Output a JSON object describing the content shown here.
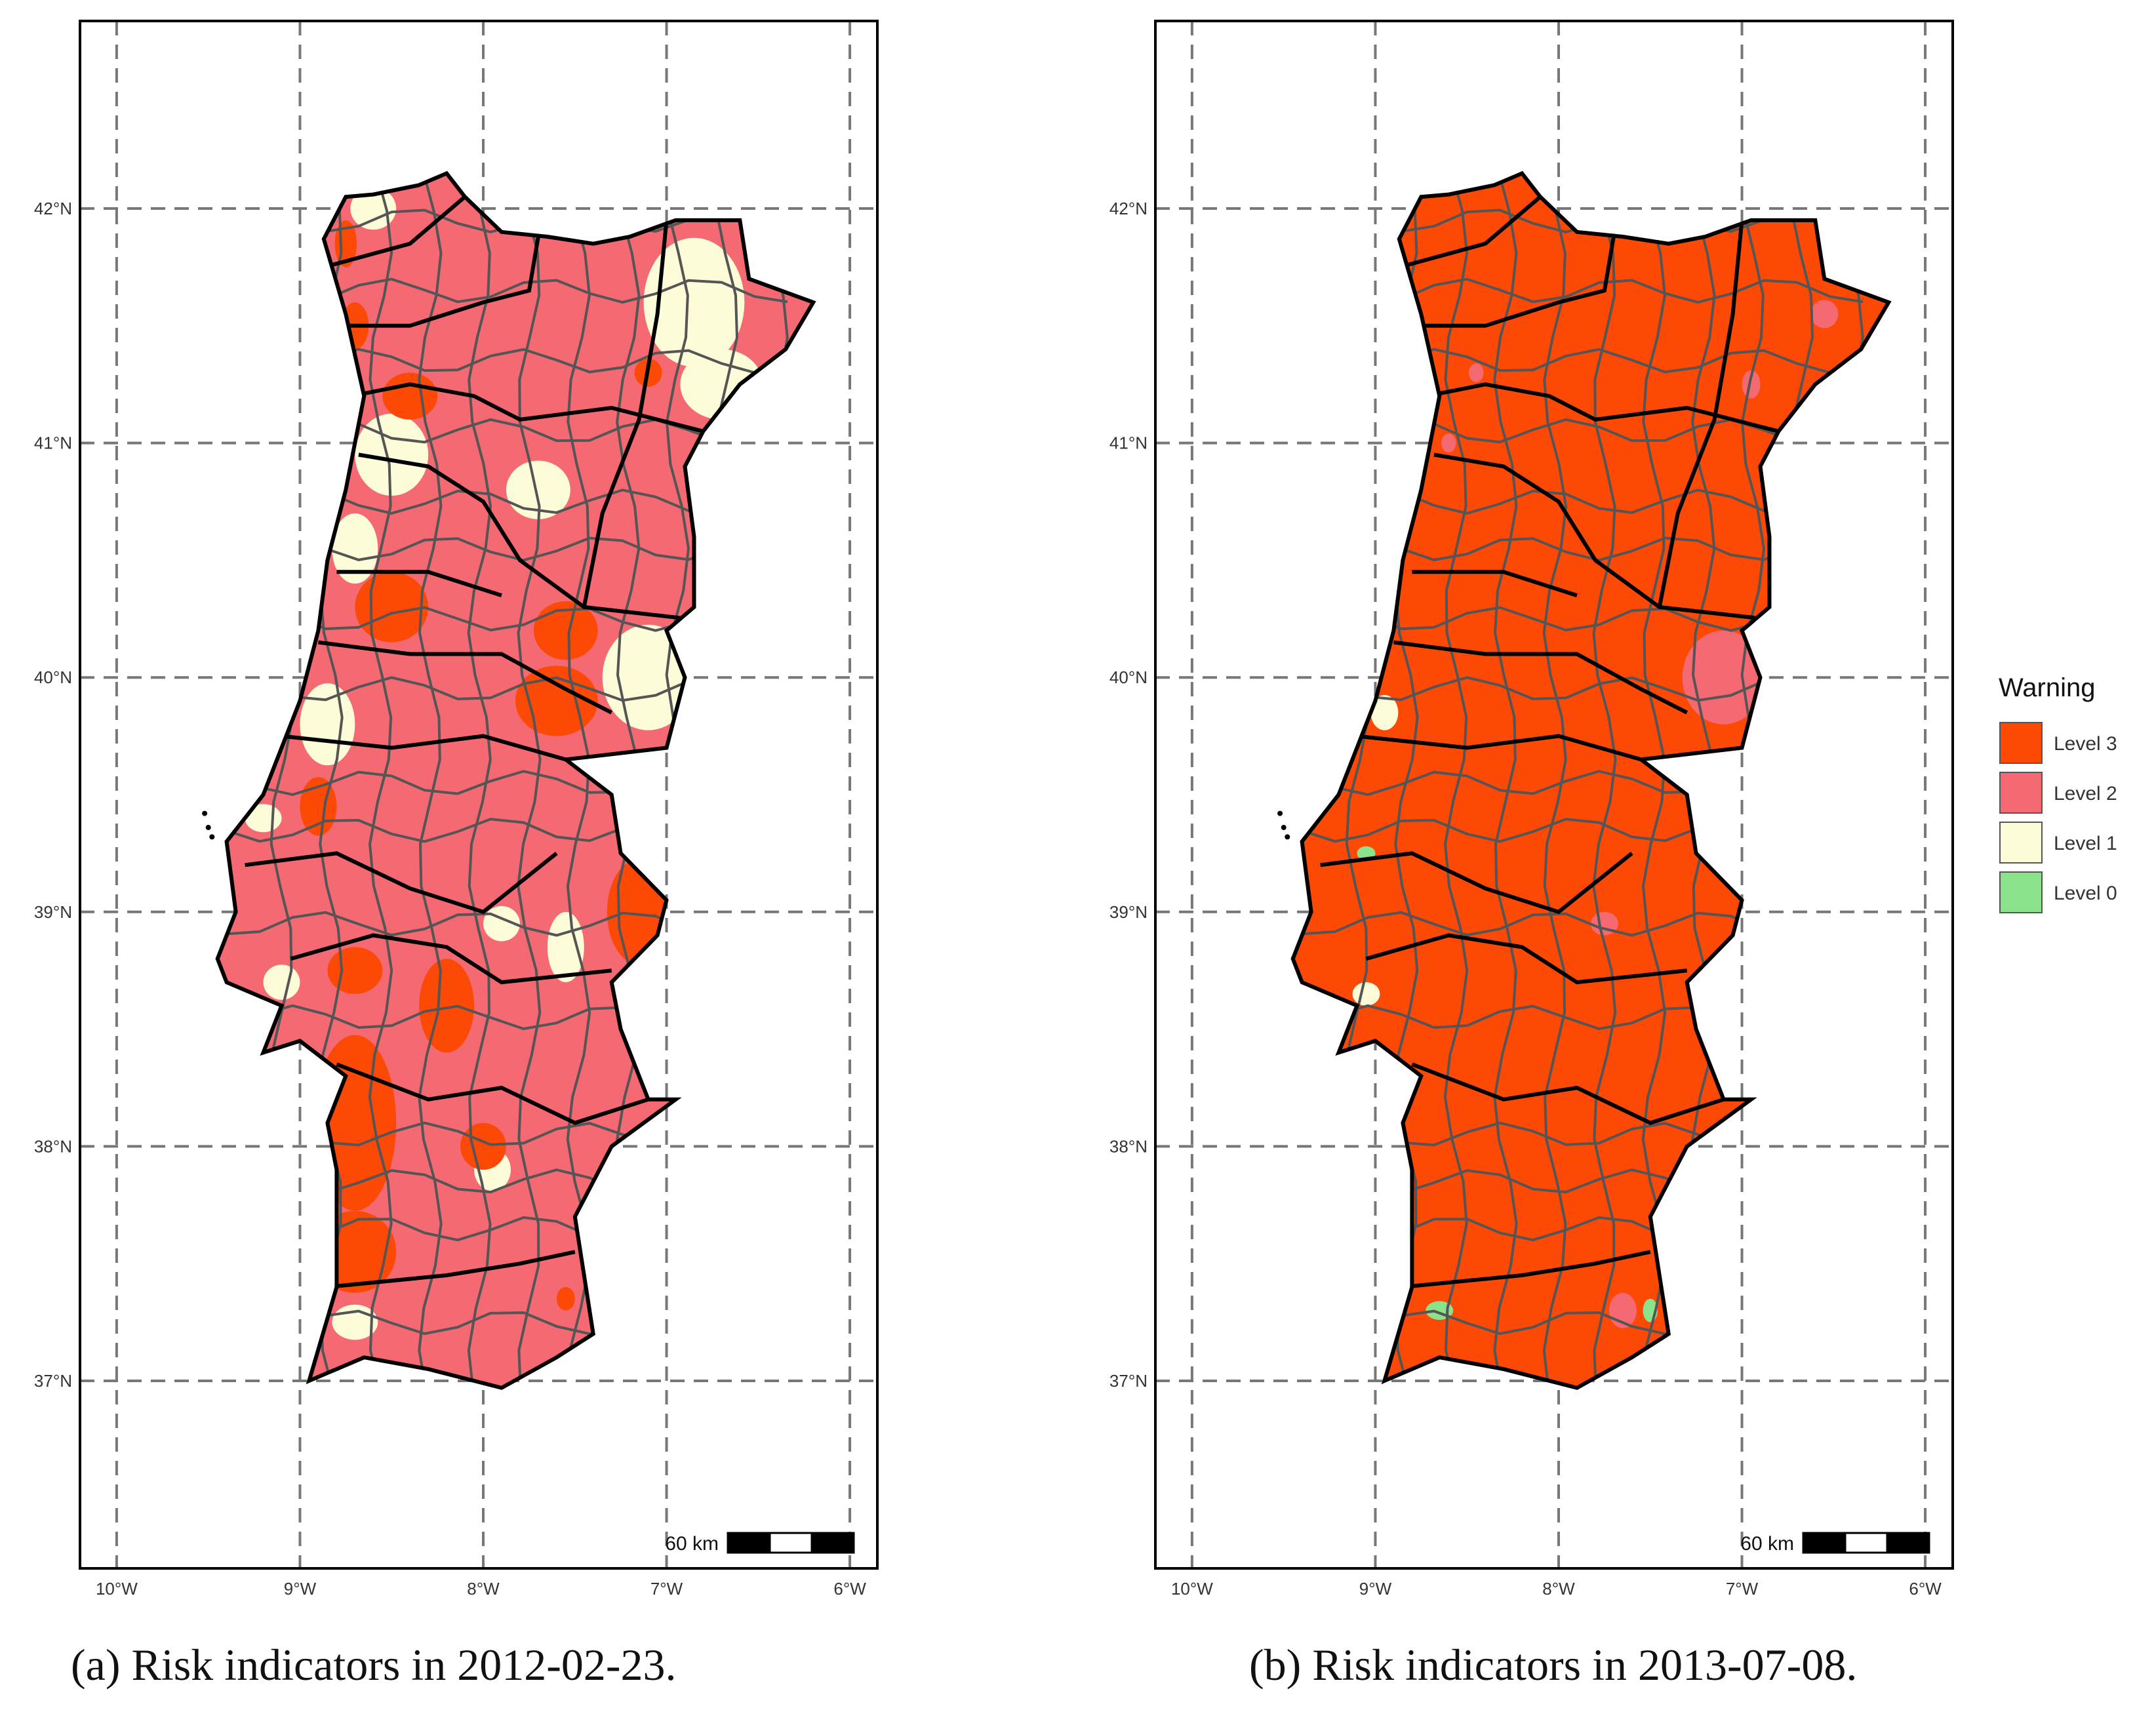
{
  "colors": {
    "level3": "#fc4a06",
    "level2": "#f56a72",
    "level1": "#fdfcd8",
    "level0": "#8ae38a",
    "district_border": "#000000",
    "municipality_border": "#555555",
    "gridline": "#777777"
  },
  "axes": {
    "x_ticks": [
      "10°W",
      "9°W",
      "8°W",
      "7°W",
      "6°W"
    ],
    "y_ticks": [
      "42°N",
      "41°N",
      "40°N",
      "39°N",
      "38°N",
      "37°N"
    ]
  },
  "scale_bar": {
    "label": "60 km"
  },
  "legend": {
    "title": "Warning",
    "items": [
      {
        "label": "Level 3",
        "color": "#fc4a06"
      },
      {
        "label": "Level 2",
        "color": "#f56a72"
      },
      {
        "label": "Level 1",
        "color": "#fdfcd8"
      },
      {
        "label": "Level 0",
        "color": "#8ae38a"
      }
    ]
  },
  "maps": [
    {
      "id": "a",
      "caption": "(a)  Risk indicators in 2012-02-23.",
      "base_level": 2,
      "patches": [
        {
          "level": 1,
          "shape": "region",
          "lon": -6.85,
          "lat": 41.6,
          "w": 0.55,
          "h": 0.55
        },
        {
          "level": 1,
          "shape": "region",
          "lon": -6.7,
          "lat": 41.25,
          "w": 0.45,
          "h": 0.3
        },
        {
          "level": 1,
          "shape": "region",
          "lon": -7.7,
          "lat": 40.8,
          "w": 0.35,
          "h": 0.25
        },
        {
          "level": 1,
          "shape": "region",
          "lon": -8.5,
          "lat": 40.95,
          "w": 0.4,
          "h": 0.35
        },
        {
          "level": 1,
          "shape": "region",
          "lon": -8.7,
          "lat": 40.55,
          "w": 0.25,
          "h": 0.3
        },
        {
          "level": 1,
          "shape": "region",
          "lon": -7.1,
          "lat": 40.0,
          "w": 0.5,
          "h": 0.45
        },
        {
          "level": 1,
          "shape": "region",
          "lon": -8.85,
          "lat": 39.8,
          "w": 0.3,
          "h": 0.35
        },
        {
          "level": 1,
          "shape": "region",
          "lon": -8.6,
          "lat": 42.0,
          "w": 0.25,
          "h": 0.18
        },
        {
          "level": 1,
          "shape": "region",
          "lon": -7.9,
          "lat": 38.95,
          "w": 0.2,
          "h": 0.15
        },
        {
          "level": 1,
          "shape": "region",
          "lon": -7.55,
          "lat": 38.85,
          "w": 0.2,
          "h": 0.3
        },
        {
          "level": 1,
          "shape": "region",
          "lon": -7.95,
          "lat": 37.9,
          "w": 0.2,
          "h": 0.18
        },
        {
          "level": 1,
          "shape": "region",
          "lon": -8.7,
          "lat": 37.25,
          "w": 0.25,
          "h": 0.15
        },
        {
          "level": 1,
          "shape": "region",
          "lon": -9.1,
          "lat": 38.7,
          "w": 0.2,
          "h": 0.15
        },
        {
          "level": 1,
          "shape": "region",
          "lon": -9.2,
          "lat": 39.4,
          "w": 0.2,
          "h": 0.12
        },
        {
          "level": 3,
          "shape": "region",
          "lon": -8.7,
          "lat": 38.1,
          "w": 0.45,
          "h": 0.75
        },
        {
          "level": 3,
          "shape": "region",
          "lon": -8.7,
          "lat": 37.55,
          "w": 0.45,
          "h": 0.35
        },
        {
          "level": 3,
          "shape": "region",
          "lon": -8.2,
          "lat": 38.6,
          "w": 0.3,
          "h": 0.4
        },
        {
          "level": 3,
          "shape": "region",
          "lon": -8.0,
          "lat": 38.0,
          "w": 0.25,
          "h": 0.2
        },
        {
          "level": 3,
          "shape": "region",
          "lon": -7.15,
          "lat": 39.0,
          "w": 0.35,
          "h": 0.45
        },
        {
          "level": 3,
          "shape": "region",
          "lon": -7.6,
          "lat": 39.9,
          "w": 0.45,
          "h": 0.3
        },
        {
          "level": 3,
          "shape": "region",
          "lon": -7.55,
          "lat": 40.2,
          "w": 0.35,
          "h": 0.25
        },
        {
          "level": 3,
          "shape": "region",
          "lon": -8.5,
          "lat": 40.3,
          "w": 0.4,
          "h": 0.3
        },
        {
          "level": 3,
          "shape": "region",
          "lon": -8.9,
          "lat": 39.45,
          "w": 0.2,
          "h": 0.25
        },
        {
          "level": 3,
          "shape": "region",
          "lon": -8.7,
          "lat": 38.75,
          "w": 0.3,
          "h": 0.2
        },
        {
          "level": 3,
          "shape": "region",
          "lon": -8.4,
          "lat": 41.2,
          "w": 0.3,
          "h": 0.2
        },
        {
          "level": 3,
          "shape": "region",
          "lon": -8.7,
          "lat": 41.5,
          "w": 0.15,
          "h": 0.2
        },
        {
          "level": 3,
          "shape": "region",
          "lon": -8.75,
          "lat": 41.85,
          "w": 0.12,
          "h": 0.2
        },
        {
          "level": 3,
          "shape": "region",
          "lon": -7.1,
          "lat": 41.3,
          "w": 0.15,
          "h": 0.12
        },
        {
          "level": 3,
          "shape": "region",
          "lon": -7.55,
          "lat": 37.35,
          "w": 0.1,
          "h": 0.1
        }
      ]
    },
    {
      "id": "b",
      "caption": "(b)  Risk indicators in 2013-07-08.",
      "base_level": 3,
      "patches": [
        {
          "level": 2,
          "shape": "region",
          "lon": -7.1,
          "lat": 40.0,
          "w": 0.45,
          "h": 0.4
        },
        {
          "level": 2,
          "shape": "region",
          "lon": -6.55,
          "lat": 41.55,
          "w": 0.15,
          "h": 0.12
        },
        {
          "level": 2,
          "shape": "region",
          "lon": -6.95,
          "lat": 41.25,
          "w": 0.1,
          "h": 0.12
        },
        {
          "level": 2,
          "shape": "region",
          "lon": -7.75,
          "lat": 38.95,
          "w": 0.15,
          "h": 0.1
        },
        {
          "level": 2,
          "shape": "region",
          "lon": -7.65,
          "lat": 37.3,
          "w": 0.15,
          "h": 0.15
        },
        {
          "level": 2,
          "shape": "region",
          "lon": -8.45,
          "lat": 41.3,
          "w": 0.08,
          "h": 0.08
        },
        {
          "level": 2,
          "shape": "region",
          "lon": -8.6,
          "lat": 41.0,
          "w": 0.08,
          "h": 0.08
        },
        {
          "level": 1,
          "shape": "region",
          "lon": -8.95,
          "lat": 39.85,
          "w": 0.15,
          "h": 0.15
        },
        {
          "level": 1,
          "shape": "region",
          "lon": -9.05,
          "lat": 38.65,
          "w": 0.15,
          "h": 0.1
        },
        {
          "level": 1,
          "shape": "region",
          "lon": -8.85,
          "lat": 37.95,
          "w": 0.06,
          "h": 0.1
        },
        {
          "level": 0,
          "shape": "region",
          "lon": -9.05,
          "lat": 39.25,
          "w": 0.1,
          "h": 0.06
        },
        {
          "level": 0,
          "shape": "region",
          "lon": -8.65,
          "lat": 37.3,
          "w": 0.15,
          "h": 0.08
        },
        {
          "level": 0,
          "shape": "region",
          "lon": -8.95,
          "lat": 37.1,
          "w": 0.08,
          "h": 0.06
        },
        {
          "level": 0,
          "shape": "region",
          "lon": -7.5,
          "lat": 37.3,
          "w": 0.08,
          "h": 0.1
        }
      ]
    }
  ]
}
